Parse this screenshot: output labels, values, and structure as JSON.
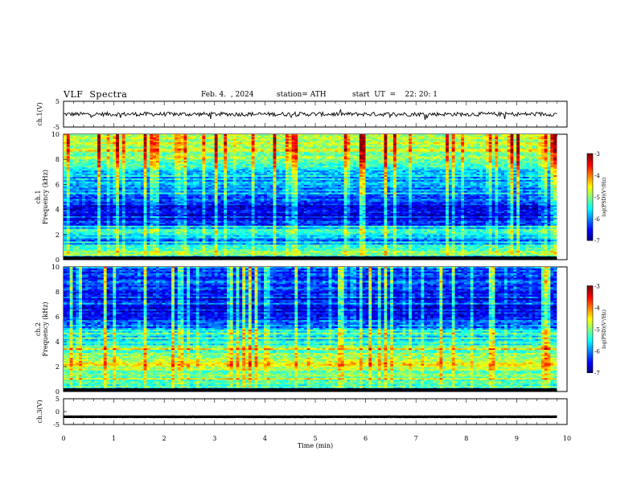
{
  "header": {
    "title": "VLF  Spectra",
    "date": "Feb. 4.  , 2024",
    "station": "station= ATH",
    "start": "start  UT  =    22: 20: 1"
  },
  "chart_data": [
    {
      "type": "line",
      "name": "ch1-waveform",
      "ylabel": "ch.1(V)",
      "ylim": [
        -5,
        5
      ],
      "yticks": [
        "5",
        "-5"
      ],
      "xlim": [
        0,
        9.8
      ],
      "baseline": 0,
      "noise_amplitude": 0.8
    },
    {
      "type": "heatmap",
      "name": "ch1-spectrogram",
      "ylabel_channel": "ch.1",
      "ylabel": "Frequency  (kHz)",
      "ylim": [
        0,
        10
      ],
      "yticks": [
        "0",
        "2",
        "4",
        "6",
        "8",
        "10"
      ],
      "xlim": [
        0,
        9.8
      ],
      "colorbar": {
        "label": "log(PSD)(V²/Hz)",
        "range": [
          -7,
          -3
        ],
        "ticks": [
          "-3",
          "-4",
          "-5",
          "-6",
          "-7"
        ]
      },
      "profile": [
        {
          "f": 0.0,
          "v": -6.2
        },
        {
          "f": 0.3,
          "v": -5.0
        },
        {
          "f": 0.7,
          "v": -5.3
        },
        {
          "f": 1.2,
          "v": -6.3
        },
        {
          "f": 1.8,
          "v": -5.4
        },
        {
          "f": 2.1,
          "v": -5.0
        },
        {
          "f": 2.6,
          "v": -6.3
        },
        {
          "f": 3.4,
          "v": -6.6
        },
        {
          "f": 4.2,
          "v": -6.5
        },
        {
          "f": 5.0,
          "v": -6.1
        },
        {
          "f": 6.0,
          "v": -5.9
        },
        {
          "f": 7.0,
          "v": -5.6
        },
        {
          "f": 8.0,
          "v": -5.0
        },
        {
          "f": 9.0,
          "v": -4.8
        },
        {
          "f": 10.0,
          "v": -4.6
        }
      ]
    },
    {
      "type": "heatmap",
      "name": "ch2-spectrogram",
      "ylabel_channel": "ch.2",
      "ylabel": "Frequency  (kHz)",
      "ylim": [
        0,
        10
      ],
      "yticks": [
        "0",
        "2",
        "4",
        "6",
        "8",
        "10"
      ],
      "xlim": [
        0,
        9.8
      ],
      "colorbar": {
        "label": "log(PSD)(V²/Hz)",
        "range": [
          -7,
          -3
        ],
        "ticks": [
          "-3",
          "-4",
          "-5",
          "-6",
          "-7"
        ]
      },
      "profile": [
        {
          "f": 0.0,
          "v": -5.5
        },
        {
          "f": 0.5,
          "v": -5.0
        },
        {
          "f": 1.0,
          "v": -5.2
        },
        {
          "f": 1.5,
          "v": -5.1
        },
        {
          "f": 2.0,
          "v": -4.2
        },
        {
          "f": 2.3,
          "v": -4.9
        },
        {
          "f": 3.0,
          "v": -5.1
        },
        {
          "f": 4.0,
          "v": -5.5
        },
        {
          "f": 5.0,
          "v": -6.0
        },
        {
          "f": 6.0,
          "v": -6.4
        },
        {
          "f": 7.0,
          "v": -6.6
        },
        {
          "f": 8.0,
          "v": -6.5
        },
        {
          "f": 9.0,
          "v": -6.4
        },
        {
          "f": 10.0,
          "v": -6.3
        }
      ]
    },
    {
      "type": "line",
      "name": "ch3-waveform",
      "ylabel": "ch.3(V)",
      "ylim": [
        -5,
        5
      ],
      "yticks": [
        "5",
        "0",
        "-5"
      ],
      "xlim": [
        0,
        9.8
      ],
      "baseline": -2,
      "noise_amplitude": 0.05
    }
  ],
  "xaxis": {
    "label": "Time  (min)",
    "ticks": [
      "0",
      "1",
      "2",
      "3",
      "4",
      "5",
      "6",
      "7",
      "8",
      "9",
      "10"
    ],
    "range": [
      0,
      10
    ]
  }
}
